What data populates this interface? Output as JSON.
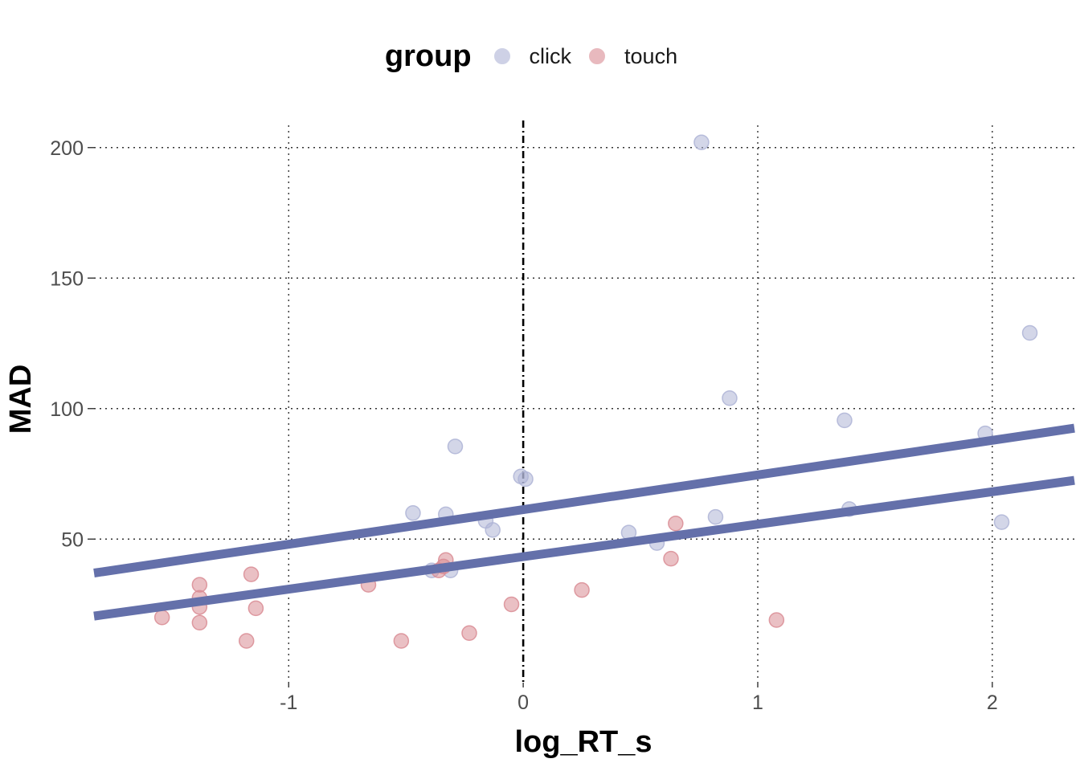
{
  "chart_data": {
    "type": "scatter",
    "xlabel": "log_RT_s",
    "ylabel": "MAD",
    "xlim": [
      -1.83,
      2.35
    ],
    "ylim": [
      -5,
      211
    ],
    "xticks": [
      -1,
      0,
      1,
      2
    ],
    "yticks": [
      50,
      100,
      150,
      200
    ],
    "grid": "dotted",
    "vline": {
      "x": 0,
      "style": "dashed"
    },
    "legend": {
      "title": "group",
      "position": "top"
    },
    "series": [
      {
        "name": "click",
        "color": "#aeb4d6",
        "points": [
          [
            0.76,
            202
          ],
          [
            2.16,
            129
          ],
          [
            0.88,
            104
          ],
          [
            1.37,
            95.5
          ],
          [
            1.97,
            90.5
          ],
          [
            -0.29,
            85.5
          ],
          [
            -0.01,
            74
          ],
          [
            0.01,
            73
          ],
          [
            -0.47,
            60
          ],
          [
            -0.33,
            59.5
          ],
          [
            0.82,
            58.5
          ],
          [
            -0.16,
            57
          ],
          [
            -0.13,
            53.5
          ],
          [
            1.39,
            61.5
          ],
          [
            2.04,
            56.5
          ],
          [
            0.45,
            52.5
          ],
          [
            0.57,
            48.5
          ],
          [
            -0.39,
            38
          ],
          [
            -0.31,
            38
          ]
        ]
      },
      {
        "name": "touch",
        "color": "#d98c94",
        "points": [
          [
            0.65,
            56
          ],
          [
            0.63,
            42.5
          ],
          [
            -0.33,
            42
          ],
          [
            -0.36,
            38
          ],
          [
            -0.34,
            39.5
          ],
          [
            -1.38,
            32.5
          ],
          [
            -1.16,
            36.5
          ],
          [
            -0.66,
            32.5
          ],
          [
            0.25,
            30.5
          ],
          [
            -1.38,
            27.5
          ],
          [
            -1.38,
            24
          ],
          [
            -1.14,
            23.5
          ],
          [
            -0.05,
            25
          ],
          [
            -1.38,
            18
          ],
          [
            1.08,
            19
          ],
          [
            -1.54,
            20
          ],
          [
            -1.18,
            11
          ],
          [
            -0.52,
            11
          ],
          [
            -0.23,
            14
          ]
        ]
      }
    ],
    "fit_lines": [
      {
        "label": "",
        "color": "#6470aa",
        "points": [
          [
            -1.83,
            37
          ],
          [
            2.35,
            92.5
          ]
        ]
      },
      {
        "label": "",
        "color": "#6470aa",
        "points": [
          [
            -1.83,
            20.5
          ],
          [
            2.35,
            72.5
          ]
        ]
      }
    ]
  }
}
